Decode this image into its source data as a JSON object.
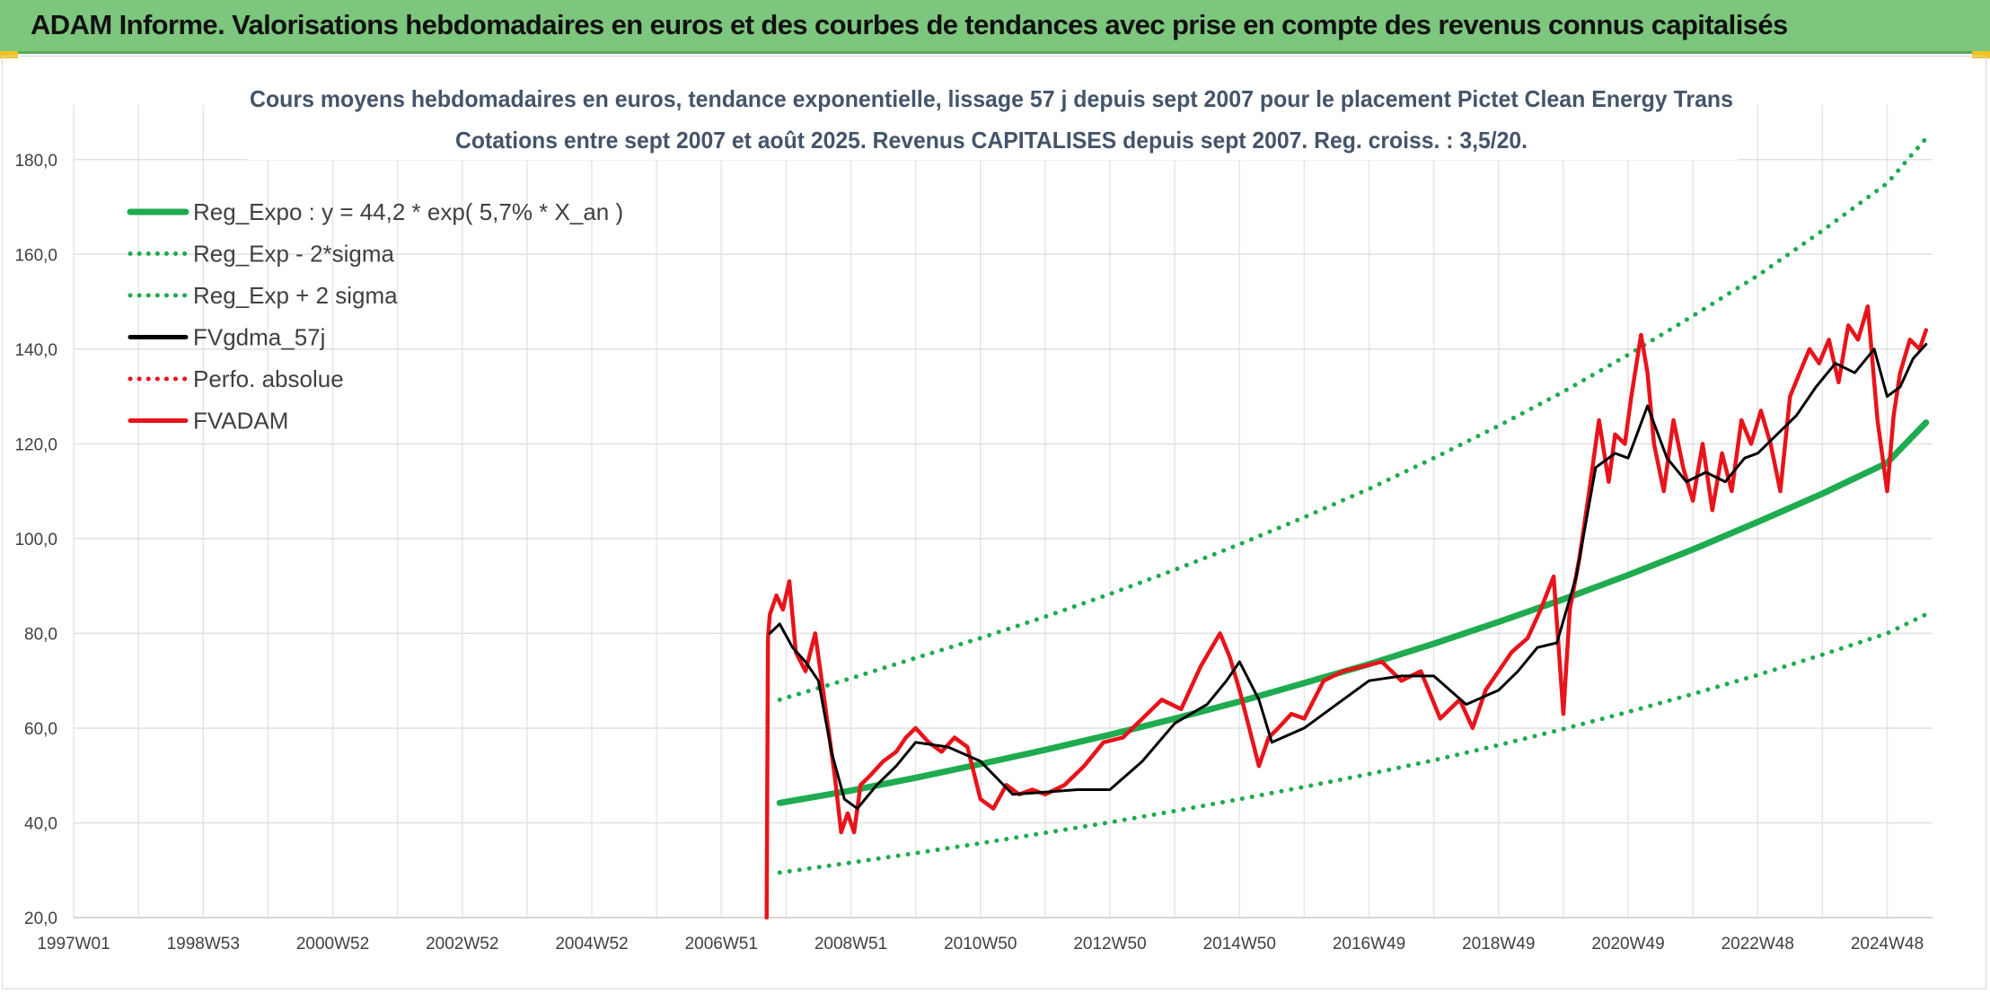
{
  "banner": {
    "title": "ADAM Informe. Valorisations hebdomadaires en euros et des courbes de tendances avec prise en compte des revenus connus capitalisés"
  },
  "chart_data": {
    "type": "line",
    "title": "Cours moyens hebdomadaires en euros, tendance exponentielle, lissage 57 j depuis sept 2007 pour le placement Pictet Clean Energy Trans",
    "subtitle": "Cotations entre sept 2007 et août 2025. Revenus CAPITALISES depuis sept 2007. Reg. croiss. : 3,5/20.",
    "xlabel": "",
    "ylabel": "",
    "xlim": [
      1997.0,
      2025.7
    ],
    "ylim": [
      20,
      190
    ],
    "y_ticks": [
      20,
      40,
      60,
      80,
      100,
      120,
      140,
      160,
      180
    ],
    "y_tick_labels": [
      "20,0",
      "40,0",
      "60,0",
      "80,0",
      "100,0",
      "120,0",
      "140,0",
      "160,0",
      "180,0"
    ],
    "x_tick_labels": [
      "1997W01",
      "1998W53",
      "2000W52",
      "2002W52",
      "2004W52",
      "2006W51",
      "2008W51",
      "2010W50",
      "2012W50",
      "2014W50",
      "2016W49",
      "2018W49",
      "2020W49",
      "2022W48",
      "2024W48"
    ],
    "x_tick_positions": [
      1997.0,
      1999.0,
      2001.0,
      2003.0,
      2005.0,
      2007.0,
      2009.0,
      2011.0,
      2013.0,
      2015.0,
      2017.0,
      2019.0,
      2021.0,
      2023.0,
      2025.0
    ],
    "grid": true,
    "legend_position": "top-left",
    "series": [
      {
        "name": "Reg_Expo : y = 44,2 * exp( 5,7% *  X_an )",
        "style": "solid",
        "color": "#1fab4f",
        "x": [
          2007.9,
          2009.0,
          2010.0,
          2011.0,
          2012.0,
          2013.0,
          2014.0,
          2015.0,
          2016.0,
          2017.0,
          2018.0,
          2019.0,
          2020.0,
          2021.0,
          2022.0,
          2023.0,
          2024.0,
          2025.0,
          2025.6
        ],
        "y": [
          44.2,
          46.8,
          49.5,
          52.4,
          55.4,
          58.6,
          62.0,
          65.6,
          69.5,
          73.5,
          77.8,
          82.4,
          87.2,
          92.3,
          97.7,
          103.5,
          109.5,
          116.0,
          124.5
        ]
      },
      {
        "name": "Reg_Exp - 2*sigma",
        "style": "dotted",
        "color": "#1fab4f",
        "x": [
          2007.9,
          2009.0,
          2010.0,
          2011.0,
          2012.0,
          2013.0,
          2014.0,
          2015.0,
          2016.0,
          2017.0,
          2018.0,
          2019.0,
          2020.0,
          2021.0,
          2022.0,
          2023.0,
          2024.0,
          2025.0,
          2025.6
        ],
        "y": [
          29.5,
          31.6,
          33.6,
          35.7,
          37.9,
          40.1,
          42.5,
          45.0,
          47.6,
          50.3,
          53.2,
          56.4,
          59.8,
          63.4,
          67.2,
          71.2,
          75.5,
          80.0,
          84.0
        ]
      },
      {
        "name": "Reg_Exp + 2 sigma",
        "style": "dotted",
        "color": "#1fab4f",
        "x": [
          2007.9,
          2009.0,
          2010.0,
          2011.0,
          2012.0,
          2013.0,
          2014.0,
          2015.0,
          2016.0,
          2017.0,
          2018.0,
          2019.0,
          2020.0,
          2021.0,
          2022.0,
          2023.0,
          2024.0,
          2025.0,
          2025.6
        ],
        "y": [
          66.0,
          70.5,
          74.8,
          79.0,
          83.5,
          88.3,
          93.4,
          98.8,
          104.5,
          110.5,
          117.0,
          123.8,
          131.0,
          138.8,
          147.0,
          155.5,
          165.0,
          175.0,
          184.5
        ]
      },
      {
        "name": "FVgdma_57j",
        "style": "solid",
        "color": "#000000",
        "x": [
          2007.75,
          2007.9,
          2008.1,
          2008.3,
          2008.5,
          2008.7,
          2008.9,
          2009.1,
          2009.4,
          2009.7,
          2010.0,
          2010.5,
          2011.0,
          2011.5,
          2012.0,
          2012.5,
          2013.0,
          2013.5,
          2014.0,
          2014.5,
          2014.8,
          2015.0,
          2015.3,
          2015.5,
          2016.0,
          2016.5,
          2017.0,
          2017.5,
          2018.0,
          2018.5,
          2019.0,
          2019.3,
          2019.6,
          2019.9,
          2020.2,
          2020.5,
          2020.8,
          2021.0,
          2021.3,
          2021.6,
          2021.9,
          2022.2,
          2022.5,
          2022.8,
          2023.0,
          2023.3,
          2023.6,
          2023.9,
          2024.2,
          2024.5,
          2024.8,
          2025.0,
          2025.2,
          2025.4,
          2025.6
        ],
        "y": [
          80,
          82,
          77,
          74,
          70,
          55,
          45,
          43,
          48,
          52,
          57,
          56,
          53,
          46,
          46.5,
          47,
          47,
          53,
          61,
          65,
          70,
          74,
          66,
          57,
          60,
          65,
          70,
          71,
          71,
          65,
          68,
          72,
          77,
          78,
          92,
          115,
          118,
          117,
          128,
          117,
          112,
          114,
          112,
          117,
          118,
          122,
          126,
          132,
          137,
          135,
          140,
          130,
          132,
          138,
          141
        ]
      },
      {
        "name": "Perfo. absolue",
        "style": "dotted",
        "color": "#e8141b",
        "x": [],
        "y": []
      },
      {
        "name": "FVADAM",
        "style": "solid",
        "color": "#e8141b",
        "x": [
          2007.7,
          2007.72,
          2007.75,
          2007.85,
          2007.95,
          2008.05,
          2008.15,
          2008.3,
          2008.45,
          2008.6,
          2008.75,
          2008.85,
          2008.95,
          2009.05,
          2009.15,
          2009.3,
          2009.5,
          2009.7,
          2009.85,
          2010.0,
          2010.2,
          2010.4,
          2010.6,
          2010.8,
          2011.0,
          2011.2,
          2011.4,
          2011.6,
          2011.8,
          2012.0,
          2012.3,
          2012.6,
          2012.9,
          2013.2,
          2013.5,
          2013.8,
          2014.1,
          2014.4,
          2014.7,
          2014.85,
          2015.0,
          2015.15,
          2015.3,
          2015.45,
          2015.6,
          2015.8,
          2016.0,
          2016.3,
          2016.6,
          2016.9,
          2017.2,
          2017.5,
          2017.8,
          2018.1,
          2018.4,
          2018.6,
          2018.8,
          2019.0,
          2019.2,
          2019.45,
          2019.65,
          2019.85,
          2020.0,
          2020.1,
          2020.25,
          2020.4,
          2020.55,
          2020.7,
          2020.8,
          2020.95,
          2021.05,
          2021.2,
          2021.3,
          2021.4,
          2021.55,
          2021.7,
          2021.85,
          2022.0,
          2022.15,
          2022.3,
          2022.45,
          2022.6,
          2022.75,
          2022.9,
          2023.05,
          2023.2,
          2023.35,
          2023.5,
          2023.65,
          2023.8,
          2023.95,
          2024.1,
          2024.25,
          2024.4,
          2024.55,
          2024.7,
          2024.85,
          2025.0,
          2025.1,
          2025.2,
          2025.35,
          2025.5,
          2025.6
        ],
        "y": [
          20,
          79,
          84,
          88,
          85,
          91,
          76,
          72,
          80,
          65,
          50,
          38,
          42,
          38,
          48,
          50,
          53,
          55,
          58,
          60,
          57,
          55,
          58,
          56,
          45,
          43,
          48,
          46,
          47,
          46,
          48,
          52,
          57,
          58,
          62,
          66,
          64,
          73,
          80,
          75,
          68,
          60,
          52,
          58,
          60,
          63,
          62,
          70,
          72,
          73,
          74,
          70,
          72,
          62,
          66,
          60,
          68,
          72,
          76,
          79,
          85,
          92,
          63,
          85,
          96,
          110,
          125,
          112,
          122,
          120,
          130,
          143,
          135,
          120,
          110,
          125,
          115,
          108,
          120,
          106,
          118,
          110,
          125,
          120,
          127,
          120,
          110,
          130,
          135,
          140,
          137,
          142,
          133,
          145,
          142,
          149,
          125,
          110,
          126,
          135,
          142,
          140,
          144
        ]
      }
    ]
  }
}
